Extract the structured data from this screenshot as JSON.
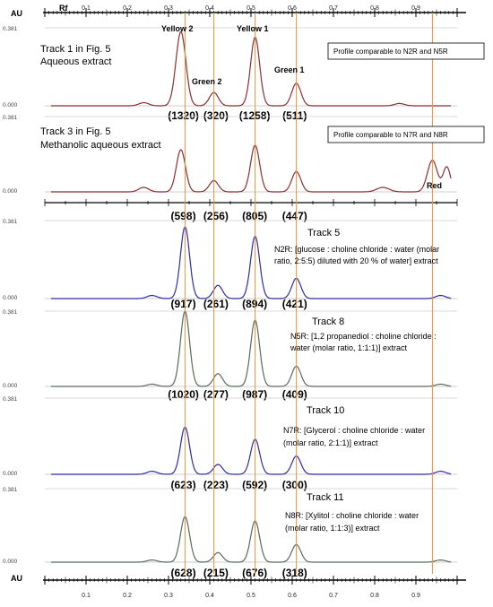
{
  "chart_data": {
    "type": "line",
    "xlabel": "Rf",
    "ylabel": "AU",
    "xlim": [
      0.0,
      1.0
    ],
    "x_ticks": [
      "0.1",
      "0.2",
      "0.3",
      "0.4",
      "0.5",
      "0.6",
      "0.7",
      "0.8",
      "0.9"
    ],
    "y_max_label": "0.381",
    "y_min_label": "0.000",
    "vlines": [
      0.34,
      0.41,
      0.51,
      0.61,
      0.94
    ],
    "tracks": [
      {
        "name": "Track  1 in Fig. 5",
        "subtitle": "Aqueous extract",
        "color": "#8b2f2f",
        "profile_note": "Profile comparable to N2R and N5R",
        "areas": [
          "(1320)",
          "(320)",
          "(1258)",
          "(511)"
        ],
        "peak_labels": [
          "Yellow 2",
          "Green 2",
          "Yellow 1",
          "Green 1"
        ],
        "peaks": [
          {
            "rf": 0.24,
            "h": 0.04,
            "w": 0.012
          },
          {
            "rf": 0.33,
            "h": 0.95,
            "w": 0.012
          },
          {
            "rf": 0.41,
            "h": 0.17,
            "w": 0.011
          },
          {
            "rf": 0.51,
            "h": 0.88,
            "w": 0.011
          },
          {
            "rf": 0.61,
            "h": 0.29,
            "w": 0.011
          },
          {
            "rf": 0.86,
            "h": 0.03,
            "w": 0.012
          }
        ]
      },
      {
        "name": "Track  3 in Fig. 5",
        "subtitle": "Methanolic aqueous extract",
        "color": "#8b2f2f",
        "profile_note": "Profile comparable to N7R and N8R",
        "areas": [
          "(598)",
          "(256)",
          "(805)",
          "(447)"
        ],
        "peak_labels": [
          "Red"
        ],
        "peaks": [
          {
            "rf": 0.24,
            "h": 0.06,
            "w": 0.012
          },
          {
            "rf": 0.33,
            "h": 0.56,
            "w": 0.011
          },
          {
            "rf": 0.41,
            "h": 0.15,
            "w": 0.011
          },
          {
            "rf": 0.51,
            "h": 0.62,
            "w": 0.011
          },
          {
            "rf": 0.61,
            "h": 0.27,
            "w": 0.011
          },
          {
            "rf": 0.82,
            "h": 0.06,
            "w": 0.015
          },
          {
            "rf": 0.94,
            "h": 0.42,
            "w": 0.012
          },
          {
            "rf": 0.975,
            "h": 0.33,
            "w": 0.009
          }
        ]
      },
      {
        "name": "Track  5",
        "color": "#2c2ca8",
        "note": "N2R: [glucose : choline chloride : water (molar ratio, 2:5:5) diluted with 20 % of water] extract",
        "areas": [
          "(917)",
          "(261)",
          "(894)",
          "(421)"
        ],
        "peaks": [
          {
            "rf": 0.26,
            "h": 0.04,
            "w": 0.012
          },
          {
            "rf": 0.34,
            "h": 0.92,
            "w": 0.011
          },
          {
            "rf": 0.42,
            "h": 0.17,
            "w": 0.011
          },
          {
            "rf": 0.51,
            "h": 0.8,
            "w": 0.011
          },
          {
            "rf": 0.61,
            "h": 0.26,
            "w": 0.011
          },
          {
            "rf": 0.96,
            "h": 0.04,
            "w": 0.012
          }
        ]
      },
      {
        "name": "Track  8",
        "color": "#5a6a5a",
        "note": "N5R: [1,2 propanediol : choline chloride : water (molar ratio, 1:1:1)] extract",
        "areas": [
          "(1020)",
          "(277)",
          "(987)",
          "(409)"
        ],
        "peaks": [
          {
            "rf": 0.26,
            "h": 0.03,
            "w": 0.012
          },
          {
            "rf": 0.34,
            "h": 1.0,
            "w": 0.011
          },
          {
            "rf": 0.42,
            "h": 0.17,
            "w": 0.011
          },
          {
            "rf": 0.51,
            "h": 0.88,
            "w": 0.011
          },
          {
            "rf": 0.61,
            "h": 0.27,
            "w": 0.011
          },
          {
            "rf": 0.96,
            "h": 0.03,
            "w": 0.012
          }
        ]
      },
      {
        "name": "Track  10",
        "color": "#2c2ca8",
        "note": "N7R: [Glycerol : choline chloride :  water (molar ratio, 2:1:1)] extract",
        "areas": [
          "(623)",
          "(223)",
          "(592)",
          "(300)"
        ],
        "peaks": [
          {
            "rf": 0.26,
            "h": 0.04,
            "w": 0.012
          },
          {
            "rf": 0.34,
            "h": 0.62,
            "w": 0.011
          },
          {
            "rf": 0.42,
            "h": 0.13,
            "w": 0.011
          },
          {
            "rf": 0.51,
            "h": 0.46,
            "w": 0.011
          },
          {
            "rf": 0.61,
            "h": 0.24,
            "w": 0.011
          },
          {
            "rf": 0.96,
            "h": 0.04,
            "w": 0.012
          }
        ]
      },
      {
        "name": "Track  11",
        "color": "#5a6a5a",
        "note": "N8R: [Xylitol : choline chloride : water (molar ratio, 1:1:3)] extract",
        "areas": [
          "(628)",
          "(215)",
          "(676)",
          "(318)"
        ],
        "peaks": [
          {
            "rf": 0.26,
            "h": 0.03,
            "w": 0.012
          },
          {
            "rf": 0.34,
            "h": 0.62,
            "w": 0.011
          },
          {
            "rf": 0.42,
            "h": 0.13,
            "w": 0.011
          },
          {
            "rf": 0.51,
            "h": 0.56,
            "w": 0.011
          },
          {
            "rf": 0.61,
            "h": 0.24,
            "w": 0.011
          },
          {
            "rf": 0.96,
            "h": 0.03,
            "w": 0.012
          }
        ]
      }
    ]
  }
}
